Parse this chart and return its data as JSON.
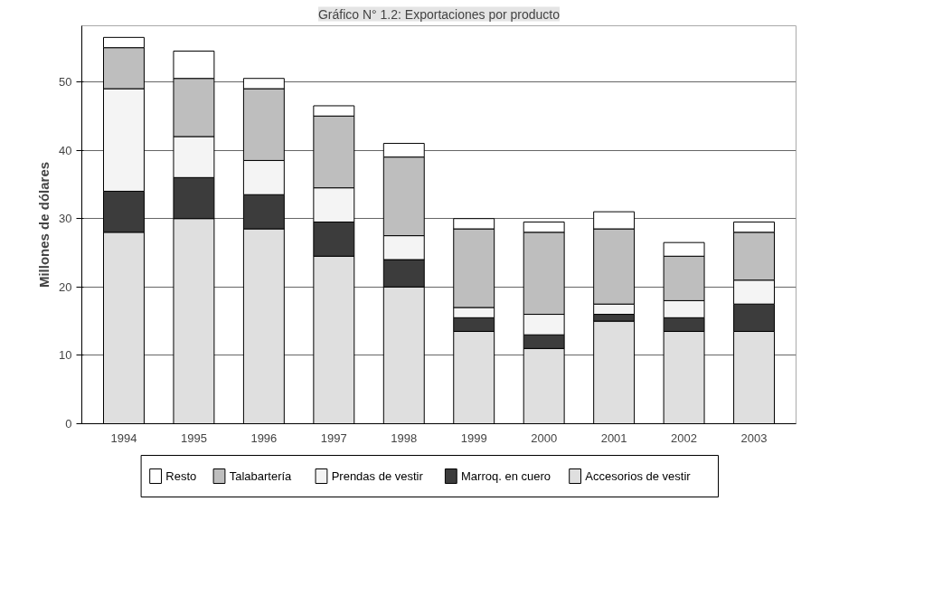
{
  "chart_data": {
    "type": "bar",
    "title": "Gráfico N° 1.2: Exportaciones por producto",
    "ylabel": "Millones de dólares",
    "categories": [
      "1994",
      "1995",
      "1996",
      "1997",
      "1998",
      "1999",
      "2000",
      "2001",
      "2002",
      "2003"
    ],
    "stacked": true,
    "series": [
      {
        "name": "Accesorios de vestir",
        "color": "#dfdfdf",
        "values": [
          28,
          30,
          28.5,
          24.5,
          20,
          13.5,
          11,
          15,
          13.5,
          13.5
        ]
      },
      {
        "name": "Marroq. en cuero",
        "color": "#3c3c3c",
        "values": [
          6,
          6,
          5,
          5,
          4,
          2,
          2,
          1,
          2,
          4
        ]
      },
      {
        "name": "Prendas de vestir",
        "color": "#f4f4f4",
        "values": [
          15,
          6,
          5,
          5,
          3.5,
          1.5,
          3,
          1.5,
          2.5,
          3.5
        ]
      },
      {
        "name": "Talabartería",
        "color": "#bebebe",
        "values": [
          6,
          8.5,
          10.5,
          10.5,
          11.5,
          11.5,
          12,
          11,
          6.5,
          7
        ]
      },
      {
        "name": "Resto",
        "color": "#ffffff",
        "values": [
          1.5,
          4,
          1.5,
          1.5,
          2,
          1.5,
          1.5,
          2.5,
          2,
          1.5
        ]
      }
    ],
    "ylim": [
      0,
      58.2
    ],
    "yticks": [
      0,
      10,
      20,
      30,
      40,
      50
    ],
    "grid": "y",
    "legend": "bottom"
  }
}
